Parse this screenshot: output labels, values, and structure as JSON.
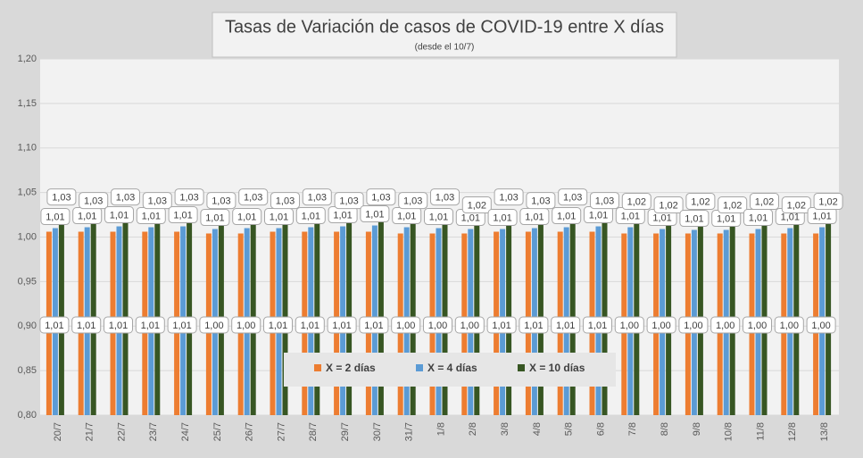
{
  "chart_data": {
    "type": "bar",
    "title": "Tasas de Variación de casos de COVID-19 entre X días",
    "subtitle": "(desde el 10/7)",
    "categories": [
      "20/7",
      "21/7",
      "22/7",
      "23/7",
      "24/7",
      "25/7",
      "26/7",
      "27/7",
      "28/7",
      "29/7",
      "30/7",
      "31/7",
      "1/8",
      "2/8",
      "3/8",
      "4/8",
      "5/8",
      "6/8",
      "7/8",
      "8/8",
      "9/8",
      "10/8",
      "11/8",
      "12/8",
      "13/8"
    ],
    "series": [
      {
        "name": "X = 2 días",
        "color": "#ed7d31",
        "values": [
          1.006,
          1.006,
          1.006,
          1.006,
          1.006,
          1.004,
          1.004,
          1.006,
          1.006,
          1.006,
          1.006,
          1.004,
          1.004,
          1.004,
          1.006,
          1.006,
          1.006,
          1.006,
          1.004,
          1.004,
          1.004,
          1.004,
          1.004,
          1.004,
          1.004
        ],
        "value_labels": [
          "1,01",
          "1,01",
          "1,01",
          "1,01",
          "1,01",
          "1,00",
          "1,00",
          "1,01",
          "1,01",
          "1,01",
          "1,01",
          "1,00",
          "1,00",
          "1,00",
          "1,01",
          "1,01",
          "1,01",
          "1,01",
          "1,00",
          "1,00",
          "1,00",
          "1,00",
          "1,00",
          "1,00",
          "1,00"
        ]
      },
      {
        "name": "X = 4 días",
        "color": "#5b9bd5",
        "values": [
          1.01,
          1.011,
          1.012,
          1.011,
          1.012,
          1.009,
          1.01,
          1.01,
          1.011,
          1.012,
          1.013,
          1.011,
          1.01,
          1.009,
          1.009,
          1.01,
          1.011,
          1.012,
          1.011,
          1.009,
          1.008,
          1.008,
          1.009,
          1.01,
          1.011
        ],
        "value_labels": [
          "1,01",
          "1,01",
          "1,01",
          "1,01",
          "1,01",
          "1,01",
          "1,01",
          "1,01",
          "1,01",
          "1,01",
          "1,01",
          "1,01",
          "1,01",
          "1,01",
          "1,01",
          "1,01",
          "1,01",
          "1,01",
          "1,01",
          "1,01",
          "1,01",
          "1,01",
          "1,01",
          "1,01",
          "1,01"
        ]
      },
      {
        "name": "X = 10 días",
        "color": "#375623",
        "values": [
          1.026,
          1.026,
          1.026,
          1.026,
          1.026,
          1.026,
          1.026,
          1.026,
          1.026,
          1.026,
          1.026,
          1.026,
          1.026,
          1.021,
          1.026,
          1.026,
          1.026,
          1.026,
          1.021,
          1.021,
          1.021,
          1.021,
          1.021,
          1.021,
          1.021
        ],
        "value_labels": [
          "1,03",
          "1,03",
          "1,03",
          "1,03",
          "1,03",
          "1,03",
          "1,03",
          "1,03",
          "1,03",
          "1,03",
          "1,03",
          "1,03",
          "1,03",
          "1,02",
          "1,03",
          "1,03",
          "1,03",
          "1,03",
          "1,02",
          "1,02",
          "1,02",
          "1,02",
          "1,02",
          "1,02",
          "1,02"
        ]
      }
    ],
    "ylim": [
      0.8,
      1.2
    ],
    "yticks": [
      {
        "value": 0.8,
        "label": "0,80"
      },
      {
        "value": 0.85,
        "label": "0,85"
      },
      {
        "value": 0.9,
        "label": "0,90"
      },
      {
        "value": 0.95,
        "label": "0,95"
      },
      {
        "value": 1.0,
        "label": "1,00"
      },
      {
        "value": 1.05,
        "label": "1,05"
      },
      {
        "value": 1.1,
        "label": "1,10"
      },
      {
        "value": 1.15,
        "label": "1,15"
      },
      {
        "value": 1.2,
        "label": "1,20"
      }
    ],
    "grid": true,
    "legend": "bottom"
  }
}
